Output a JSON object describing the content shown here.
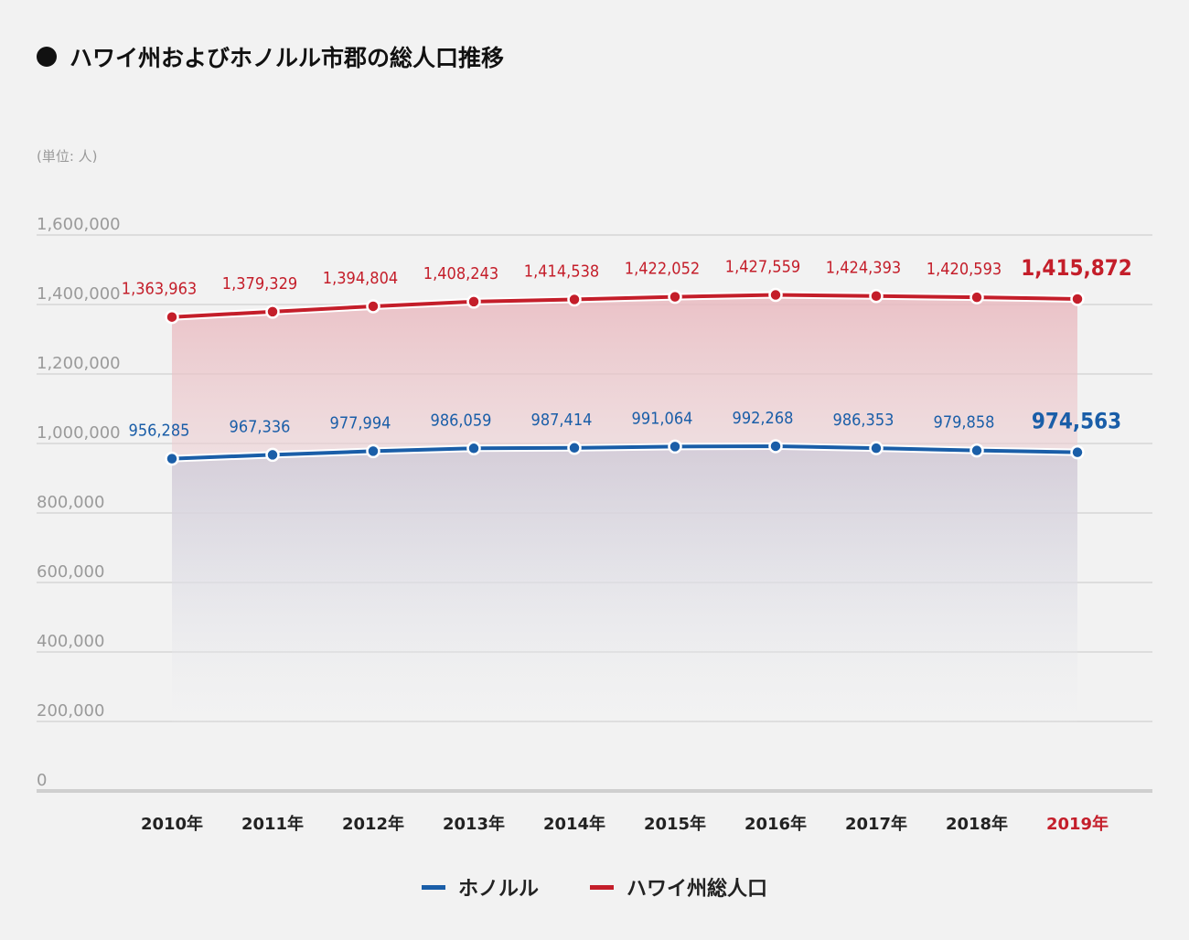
{
  "title": "ハワイ州およびホノルル市郡の総人口推移",
  "unit_label": "(単位: 人)",
  "chart_data": {
    "type": "line",
    "title": "ハワイ州およびホノルル市郡の総人口推移",
    "ylabel": "(単位: 人)",
    "ylim": [
      0,
      1600000
    ],
    "yticks": [
      0,
      200000,
      400000,
      600000,
      800000,
      1000000,
      1200000,
      1400000,
      1600000
    ],
    "ytick_labels": [
      "0",
      "200,000",
      "400,000",
      "600,000",
      "800,000",
      "1,000,000",
      "1,200,000",
      "1,400,000",
      "1,600,000"
    ],
    "categories": [
      "2010年",
      "2011年",
      "2012年",
      "2013年",
      "2014年",
      "2015年",
      "2016年",
      "2017年",
      "2018年",
      "2019年"
    ],
    "grid": true,
    "legend_position": "bottom-center",
    "series": [
      {
        "name": "ホノルル",
        "color": "#1a5ea8",
        "values": [
          956285,
          967336,
          977994,
          986059,
          987414,
          991064,
          992268,
          986353,
          979858,
          974563
        ],
        "labels": [
          "956,285",
          "967,336",
          "977,994",
          "986,059",
          "987,414",
          "991,064",
          "992,268",
          "986,353",
          "979,858",
          "974,563"
        ]
      },
      {
        "name": "ハワイ州総人口",
        "color": "#c41e2a",
        "values": [
          1363963,
          1379329,
          1394804,
          1408243,
          1414538,
          1422052,
          1427559,
          1424393,
          1420593,
          1415872
        ],
        "labels": [
          "1,363,963",
          "1,379,329",
          "1,394,804",
          "1,408,243",
          "1,414,538",
          "1,422,052",
          "1,427,559",
          "1,424,393",
          "1,420,593",
          "1,415,872"
        ]
      }
    ],
    "highlight_category": "2019年",
    "highlight_color": "#c41e2a"
  }
}
